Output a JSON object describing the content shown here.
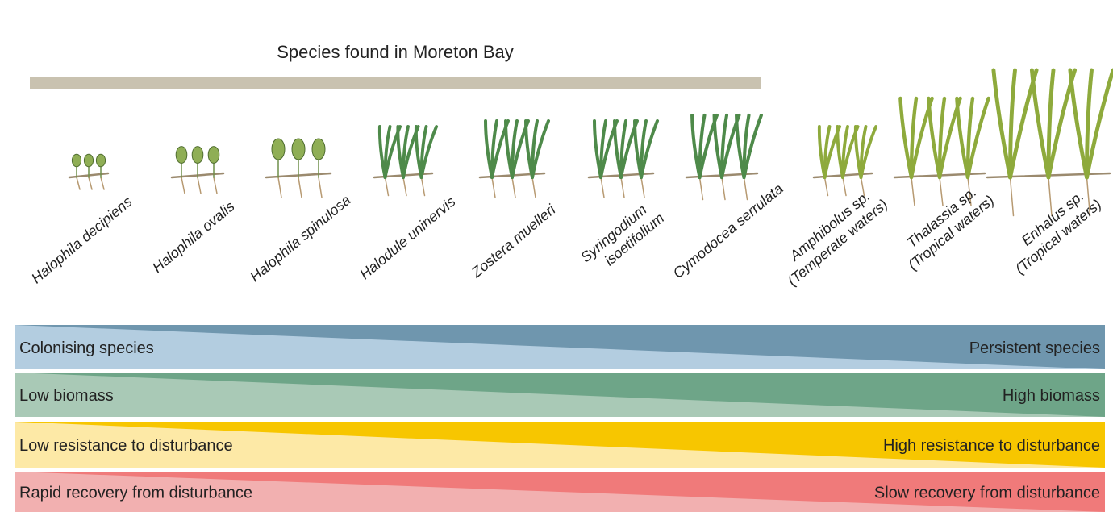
{
  "title": "Species found in Moreton Bay",
  "species": [
    {
      "lines": [
        "Halophila decipiens"
      ]
    },
    {
      "lines": [
        "Halophila ovalis"
      ]
    },
    {
      "lines": [
        "Halophila spinulosa"
      ]
    },
    {
      "lines": [
        "Halodule uninervis"
      ]
    },
    {
      "lines": [
        "Zostera muelleri"
      ]
    },
    {
      "lines": [
        "Syringodium",
        "isoetifolium"
      ]
    },
    {
      "lines": [
        "Cymodocea serrulata"
      ]
    },
    {
      "lines": [
        "Amphibolus sp.",
        "(Temperate waters)"
      ]
    },
    {
      "lines": [
        "Thalassia sp.",
        "(Tropical waters)"
      ]
    },
    {
      "lines": [
        "Enhalus sp.",
        "(Tropical waters)"
      ]
    }
  ],
  "gradients": [
    {
      "left": "Colonising species",
      "right": "Persistent species"
    },
    {
      "left": "Low biomass",
      "right": "High biomass"
    },
    {
      "left": "Low resistance to disturbance",
      "right": "High resistance to disturbance"
    },
    {
      "left": "Rapid recovery from disturbance",
      "right": "Slow recovery from disturbance"
    }
  ]
}
